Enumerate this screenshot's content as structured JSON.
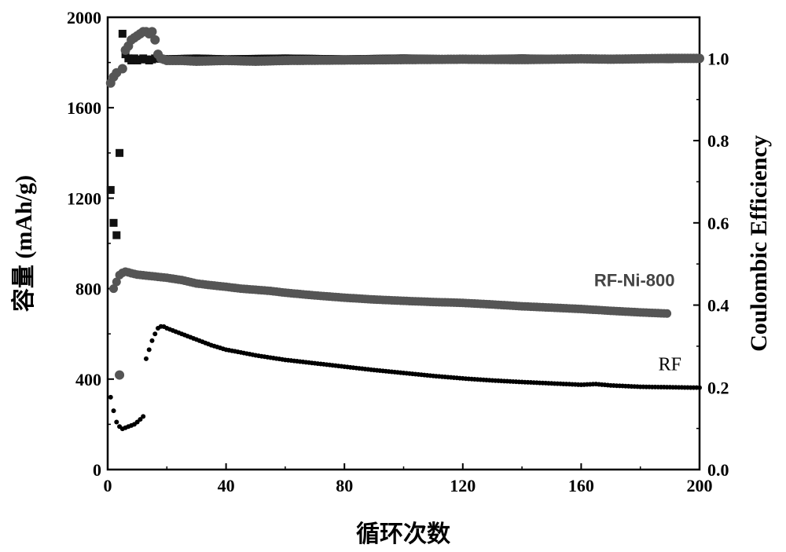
{
  "chart_data": {
    "type": "scatter",
    "xlabel": "循环次数",
    "ylabel": "容量 (mAh/g)",
    "y2label": "Coulombic Efficiency",
    "xlim": [
      0,
      200
    ],
    "ylim": [
      0,
      2000
    ],
    "y2lim": [
      0,
      1.1
    ],
    "xticks": [
      "0",
      "40",
      "80",
      "120",
      "160",
      "200"
    ],
    "yticks": [
      "0",
      "400",
      "800",
      "1200",
      "1600",
      "2000"
    ],
    "y2ticks": [
      "0.0",
      "0.2",
      "0.4",
      "0.6",
      "0.8",
      "1.0"
    ],
    "grid": false,
    "annotations": [
      {
        "text": "RF-Ni-800",
        "x": 178,
        "y": 810
      },
      {
        "text": "RF",
        "x": 190,
        "y": 440
      }
    ],
    "series": [
      {
        "axis": "left",
        "marker": "circle",
        "color": "#555555",
        "points": [
          [
            2,
            800
          ],
          [
            3,
            830
          ],
          [
            4,
            860
          ],
          [
            5,
            870
          ],
          [
            6,
            875
          ],
          [
            7,
            872
          ],
          [
            8,
            868
          ],
          [
            10,
            862
          ],
          [
            15,
            855
          ],
          [
            20,
            848
          ],
          [
            25,
            838
          ],
          [
            30,
            823
          ],
          [
            35,
            815
          ],
          [
            40,
            808
          ],
          [
            45,
            800
          ],
          [
            50,
            795
          ],
          [
            55,
            790
          ],
          [
            60,
            782
          ],
          [
            70,
            770
          ],
          [
            80,
            760
          ],
          [
            90,
            752
          ],
          [
            100,
            746
          ],
          [
            110,
            741
          ],
          [
            120,
            737
          ],
          [
            130,
            730
          ],
          [
            140,
            722
          ],
          [
            150,
            716
          ],
          [
            160,
            710
          ],
          [
            170,
            702
          ],
          [
            180,
            695
          ],
          [
            189,
            690
          ]
        ]
      },
      {
        "axis": "left",
        "marker": "dot",
        "color": "#000000",
        "points": [
          [
            1,
            320
          ],
          [
            2,
            260
          ],
          [
            3,
            210
          ],
          [
            4,
            190
          ],
          [
            5,
            180
          ],
          [
            6,
            185
          ],
          [
            7,
            190
          ],
          [
            8,
            195
          ],
          [
            9,
            200
          ],
          [
            10,
            210
          ],
          [
            11,
            222
          ],
          [
            12,
            235
          ],
          [
            13,
            490
          ],
          [
            14,
            530
          ],
          [
            15,
            570
          ],
          [
            16,
            600
          ],
          [
            17,
            625
          ],
          [
            18,
            633
          ],
          [
            19,
            632
          ],
          [
            20,
            625
          ],
          [
            25,
            600
          ],
          [
            30,
            575
          ],
          [
            35,
            550
          ],
          [
            40,
            530
          ],
          [
            45,
            518
          ],
          [
            50,
            505
          ],
          [
            55,
            495
          ],
          [
            60,
            485
          ],
          [
            70,
            470
          ],
          [
            80,
            455
          ],
          [
            90,
            440
          ],
          [
            100,
            427
          ],
          [
            110,
            414
          ],
          [
            120,
            403
          ],
          [
            130,
            394
          ],
          [
            140,
            387
          ],
          [
            150,
            381
          ],
          [
            160,
            375
          ],
          [
            165,
            378
          ],
          [
            170,
            372
          ],
          [
            180,
            366
          ],
          [
            190,
            364
          ],
          [
            200,
            362
          ]
        ]
      },
      {
        "axis": "right",
        "marker": "square",
        "color": "#111111",
        "points": [
          [
            1,
            0.68
          ],
          [
            2,
            0.6
          ],
          [
            3,
            0.57
          ],
          [
            4,
            0.77
          ],
          [
            5,
            1.06
          ],
          [
            6,
            1.01
          ],
          [
            7,
            1.0
          ],
          [
            8,
            0.995
          ],
          [
            9,
            1.0
          ],
          [
            10,
            0.995
          ],
          [
            12,
            1.0
          ],
          [
            14,
            0.995
          ],
          [
            16,
            1.0
          ],
          [
            20,
            0.998
          ],
          [
            30,
            1.0
          ],
          [
            40,
            0.998
          ],
          [
            60,
            1.0
          ],
          [
            80,
            0.998
          ],
          [
            100,
            1.0
          ],
          [
            120,
            0.998
          ],
          [
            140,
            1.0
          ],
          [
            160,
            0.998
          ],
          [
            180,
            1.0
          ],
          [
            190,
            0.998
          ]
        ]
      },
      {
        "axis": "right",
        "marker": "big-circle",
        "color": "#555555",
        "points": [
          [
            1,
            0.94
          ],
          [
            2,
            0.955
          ],
          [
            3,
            0.965
          ],
          [
            4,
            0.23
          ],
          [
            5,
            0.975
          ],
          [
            6,
            1.02
          ],
          [
            7,
            1.03
          ],
          [
            8,
            1.045
          ],
          [
            9,
            1.05
          ],
          [
            10,
            1.055
          ],
          [
            11,
            1.06
          ],
          [
            12,
            1.065
          ],
          [
            13,
            1.065
          ],
          [
            14,
            1.06
          ],
          [
            15,
            1.065
          ],
          [
            16,
            1.045
          ],
          [
            17,
            1.01
          ],
          [
            18,
            1.0
          ],
          [
            20,
            0.995
          ],
          [
            25,
            0.995
          ],
          [
            30,
            0.993
          ],
          [
            40,
            0.995
          ],
          [
            50,
            0.993
          ],
          [
            60,
            0.995
          ],
          [
            80,
            0.996
          ],
          [
            100,
            0.997
          ],
          [
            120,
            0.998
          ],
          [
            140,
            0.997
          ],
          [
            160,
            0.999
          ],
          [
            170,
            0.998
          ],
          [
            180,
            0.999
          ],
          [
            190,
            1.0
          ],
          [
            200,
            1.0
          ]
        ]
      }
    ]
  }
}
